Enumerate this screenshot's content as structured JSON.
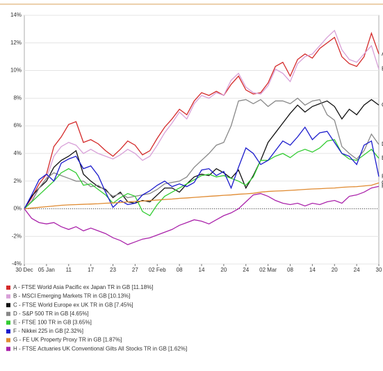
{
  "chart_data": {
    "type": "line",
    "categories": [
      "30 Dec",
      null,
      null,
      "05 Jan",
      null,
      null,
      "11",
      null,
      null,
      "17",
      null,
      null,
      "23",
      null,
      null,
      "27",
      null,
      null,
      "02 Feb",
      null,
      null,
      "08",
      null,
      null,
      "14",
      null,
      null,
      "20",
      null,
      null,
      "24",
      null,
      null,
      "02 Mar",
      null,
      null,
      "08",
      null,
      null,
      "14",
      null,
      null,
      "20",
      null,
      null,
      "24",
      null,
      null,
      "30"
    ],
    "ylim": [
      -4,
      14
    ],
    "yticks": [
      {
        "value": -4,
        "label": "-4%"
      },
      {
        "value": -2,
        "label": "-2%"
      },
      {
        "value": 0,
        "label": "0%"
      },
      {
        "value": 2,
        "label": "2%"
      },
      {
        "value": 4,
        "label": "4%"
      },
      {
        "value": 6,
        "label": "6%"
      },
      {
        "value": 8,
        "label": "8%"
      },
      {
        "value": 10,
        "label": "10%"
      },
      {
        "value": 12,
        "label": "12%"
      },
      {
        "value": 14,
        "label": "14%"
      }
    ],
    "grid": true,
    "series": [
      {
        "name": "A - FTSE World Asia Pacific ex Japan TR in GB [11.18%]",
        "label": "A",
        "color": "#d42a2a",
        "values": [
          0,
          0.8,
          1.8,
          2.5,
          4.5,
          5.2,
          6.1,
          6.3,
          4.8,
          5.0,
          4.7,
          4.2,
          3.8,
          4.3,
          4.9,
          4.6,
          3.9,
          4.2,
          5.1,
          5.9,
          6.5,
          7.2,
          6.8,
          7.8,
          8.4,
          8.2,
          8.5,
          8.2,
          9.0,
          9.6,
          8.6,
          8.3,
          8.4,
          9.1,
          10.3,
          10.6,
          9.6,
          10.8,
          11.2,
          10.9,
          11.6,
          12.0,
          12.4,
          11.0,
          10.5,
          10.3,
          11.0,
          12.7,
          11.2
        ]
      },
      {
        "name": "B - MSCI Emerging Markets TR in GB [10.13%]",
        "label": "B",
        "color": "#d8a0d8",
        "values": [
          0,
          0.6,
          1.5,
          2.2,
          3.8,
          4.5,
          4.8,
          4.6,
          4.0,
          4.3,
          4.0,
          3.8,
          3.6,
          3.9,
          4.3,
          4.0,
          3.5,
          3.8,
          4.6,
          5.5,
          6.2,
          7.0,
          6.5,
          7.6,
          8.2,
          8.0,
          8.4,
          8.2,
          9.3,
          9.8,
          8.8,
          8.4,
          8.3,
          8.9,
          10.1,
          9.8,
          9.2,
          10.5,
          11.0,
          11.2,
          11.8,
          12.4,
          12.9,
          11.5,
          10.8,
          10.6,
          11.2,
          11.8,
          10.1
        ]
      },
      {
        "name": "C - FTSE World Europe ex UK TR in GB [7.45%]",
        "label": "C",
        "color": "#111111",
        "values": [
          0,
          0.9,
          1.5,
          2.0,
          3.0,
          3.5,
          3.8,
          4.2,
          2.5,
          2.0,
          1.6,
          1.4,
          0.8,
          1.2,
          0.5,
          0.4,
          0.6,
          0.5,
          1.0,
          1.5,
          1.5,
          1.2,
          1.8,
          2.3,
          2.5,
          2.4,
          2.9,
          2.6,
          2.2,
          2.8,
          1.5,
          2.4,
          3.5,
          4.8,
          5.5,
          6.2,
          6.9,
          7.5,
          7.0,
          7.4,
          7.6,
          7.8,
          7.4,
          6.5,
          7.2,
          6.8,
          7.5,
          7.9,
          7.5
        ]
      },
      {
        "name": "D - S&P 500 TR in GB [4.65%]",
        "label": "D",
        "color": "#888888",
        "values": [
          0,
          0.5,
          1.5,
          2.2,
          2.6,
          2.4,
          2.2,
          2.0,
          2.0,
          1.6,
          1.7,
          1.3,
          0.9,
          1.1,
          0.8,
          0.9,
          1.0,
          1.1,
          1.4,
          1.8,
          1.9,
          2.0,
          2.3,
          3.0,
          3.5,
          4.0,
          4.6,
          4.8,
          6.0,
          7.8,
          7.9,
          7.6,
          7.9,
          7.4,
          7.8,
          7.8,
          7.6,
          8.0,
          7.5,
          7.8,
          7.9,
          6.8,
          6.4,
          4.5,
          4.0,
          3.6,
          4.2,
          5.4,
          4.65
        ]
      },
      {
        "name": "E - FTSE 100 TR in GB [3.65%]",
        "label": "E",
        "color": "#33cc33",
        "values": [
          0,
          0.5,
          1.0,
          1.5,
          2.0,
          2.6,
          2.9,
          2.6,
          1.7,
          1.8,
          1.4,
          1.0,
          0.4,
          0.8,
          1.1,
          0.9,
          -0.2,
          -0.5,
          0.3,
          0.9,
          1.2,
          1.5,
          1.8,
          2.1,
          2.4,
          2.5,
          2.3,
          2.4,
          2.2,
          2.0,
          1.7,
          2.3,
          3.5,
          3.5,
          3.8,
          4.0,
          3.7,
          4.1,
          4.3,
          4.1,
          4.4,
          4.9,
          5.0,
          4.0,
          3.6,
          3.5,
          3.9,
          4.3,
          3.65
        ]
      },
      {
        "name": "F - Nikkei 225 in GB [2.32%]",
        "label": "F",
        "color": "#1a1acc",
        "values": [
          0,
          1.0,
          2.1,
          2.5,
          2.0,
          3.3,
          3.6,
          3.8,
          2.9,
          3.1,
          2.4,
          1.2,
          0.1,
          0.6,
          0.3,
          0.4,
          1.0,
          1.3,
          1.7,
          2.0,
          1.6,
          1.8,
          1.6,
          1.9,
          2.8,
          2.9,
          2.4,
          2.7,
          1.5,
          3.0,
          4.4,
          4.0,
          3.2,
          3.5,
          4.2,
          4.9,
          4.6,
          5.2,
          5.9,
          5.0,
          5.5,
          5.6,
          4.8,
          4.0,
          3.8,
          3.2,
          4.6,
          4.9,
          2.32
        ]
      },
      {
        "name": "G - FE UK Property Proxy TR in GB [1.87%]",
        "label": "G",
        "color": "#e08a30",
        "values": [
          0,
          0.05,
          0.1,
          0.15,
          0.2,
          0.25,
          0.28,
          0.3,
          0.32,
          0.34,
          0.36,
          0.4,
          0.42,
          0.45,
          0.5,
          0.53,
          0.55,
          0.6,
          0.63,
          0.67,
          0.7,
          0.75,
          0.78,
          0.82,
          0.86,
          0.9,
          0.93,
          0.97,
          1.0,
          1.05,
          1.08,
          1.12,
          1.2,
          1.25,
          1.28,
          1.3,
          1.33,
          1.36,
          1.4,
          1.43,
          1.45,
          1.48,
          1.5,
          1.55,
          1.58,
          1.6,
          1.65,
          1.7,
          1.87
        ]
      },
      {
        "name": "H - FTSE Actuaries UK Conventional Gilts All Stocks TR in GB [1.62%]",
        "label": "H",
        "color": "#aa22aa",
        "values": [
          0,
          -0.7,
          -1.0,
          -1.1,
          -1.0,
          -1.3,
          -1.5,
          -1.3,
          -1.6,
          -1.4,
          -1.6,
          -1.8,
          -2.1,
          -2.3,
          -2.6,
          -2.4,
          -2.2,
          -2.1,
          -1.9,
          -1.7,
          -1.5,
          -1.2,
          -1.0,
          -0.8,
          -0.9,
          -1.1,
          -0.8,
          -0.5,
          -0.3,
          0.0,
          0.5,
          1.0,
          1.1,
          0.9,
          0.6,
          0.4,
          0.3,
          0.4,
          0.2,
          0.4,
          0.3,
          0.5,
          0.6,
          0.4,
          0.9,
          1.0,
          1.2,
          1.5,
          1.62
        ]
      }
    ]
  }
}
